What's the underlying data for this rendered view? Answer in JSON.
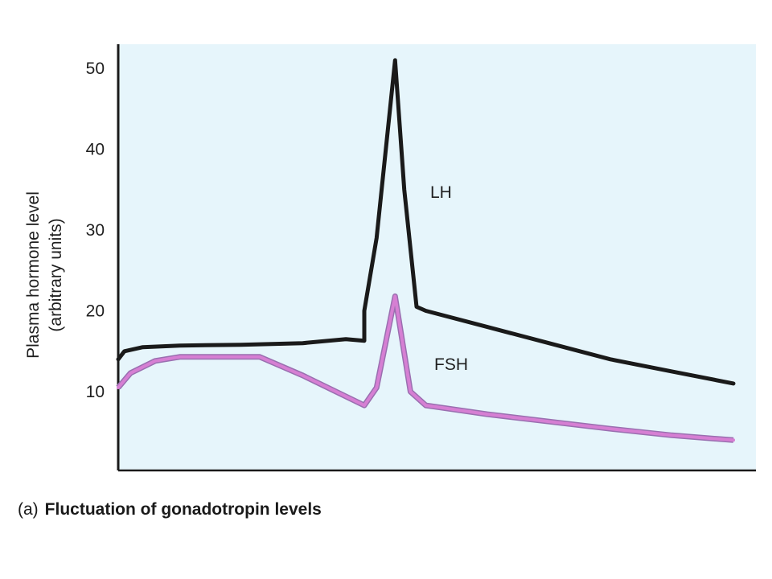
{
  "caption": {
    "letter": "(a)",
    "title": "Fluctuation of gonadotropin levels"
  },
  "chart_data": {
    "type": "line",
    "title": "Fluctuation of gonadotropin levels",
    "ylabel_line1": "Plasma hormone level",
    "ylabel_line2": "(arbitrary units)",
    "xlabel": "",
    "ylim": [
      0,
      52
    ],
    "xlim": [
      0,
      100
    ],
    "yticks": [
      10,
      20,
      30,
      40,
      50
    ],
    "grid": false,
    "series": [
      {
        "name": "LH",
        "color": "#1a1a1a",
        "x": [
          0,
          1,
          4,
          10,
          20,
          30,
          40,
          37,
          40,
          42,
          45,
          46.5,
          48.5,
          50,
          60,
          70,
          80,
          90,
          100
        ],
        "y": [
          14,
          15,
          15.5,
          15.7,
          15.8,
          16,
          16.3,
          16.5,
          20,
          29,
          51,
          35,
          20.5,
          20,
          18,
          16,
          14,
          12.5,
          11
        ]
      },
      {
        "name": "FSH",
        "color": "#d67fd3",
        "x": [
          0,
          2,
          6,
          10,
          20,
          23,
          30,
          40,
          42,
          45,
          47.5,
          50,
          60,
          70,
          80,
          90,
          100
        ],
        "y": [
          10.5,
          12.3,
          13.8,
          14.3,
          14.3,
          14.3,
          12,
          8.3,
          10.5,
          21.8,
          10,
          8.3,
          7.2,
          6.3,
          5.4,
          4.6,
          4
        ]
      }
    ]
  }
}
